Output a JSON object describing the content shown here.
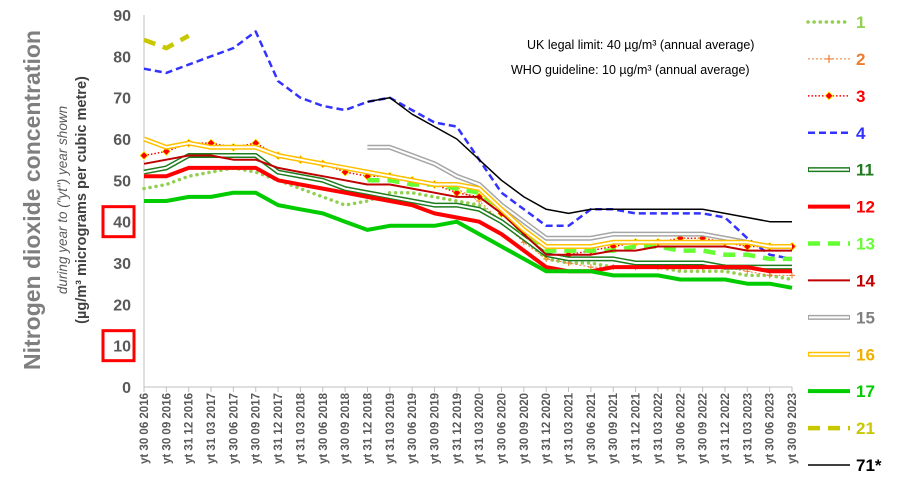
{
  "chart_data": {
    "type": "line",
    "title": "",
    "ylabel_main": "Nitrogen dioxide concentration",
    "ylabel_sub": "during year to (\"yt\") year shown",
    "ylabel_units": "(µg/m³ micrograms per cubic metre)",
    "ylim": [
      0,
      90
    ],
    "yticks": [
      "0",
      "10",
      "20",
      "30",
      "40",
      "50",
      "60",
      "70",
      "80",
      "90"
    ],
    "highlighted_ticks": [
      "10",
      "40"
    ],
    "x": [
      "yt 30 06 2016",
      "yt 30 09 2016",
      "yt 31 12 2016",
      "yt 31 03 2017",
      "yt 30 06 2017",
      "yt 30 09 2017",
      "yt 31 12 2017",
      "yt 31 03 2018",
      "yt 30 06 2018",
      "yt 30 09 2018",
      "yt 31 12 2018",
      "yt 31 03 2019",
      "yt 30 06 2019",
      "yt 30 09 2019",
      "yt 31 12 2019",
      "yt 31 03 2020",
      "yt 30 06 2020",
      "yt 30 09 2020",
      "yt 31 12 2020",
      "yt 31 03 2021",
      "yt 30 06 2021",
      "yt 30 09 2021",
      "yt 31 12 2021",
      "yt 31 03 2022",
      "yt 30 06 2022",
      "yt 30 09 2022",
      "yt 31 12 2022",
      "yt 31 03 2023",
      "yt 30 06 2023",
      "yt 30 09 2023"
    ],
    "annotations": [
      "UK legal limit:  40 µg/m³ (annual average)",
      "WHO guideline:  10 µg/m³ (annual average)"
    ],
    "legend_position": "right",
    "grid": false,
    "series": [
      {
        "name": "1",
        "color": "#92d050",
        "style": "dotted",
        "values": [
          48,
          49,
          51,
          52,
          53,
          52,
          50,
          48,
          46,
          44,
          45,
          47,
          47,
          46,
          45,
          44,
          40,
          36,
          31,
          30,
          30,
          29,
          29,
          29,
          28,
          28,
          28,
          27,
          27,
          26
        ]
      },
      {
        "name": "2",
        "color": "#ed7d31",
        "style": "plus",
        "values": [
          null,
          null,
          null,
          null,
          null,
          null,
          null,
          null,
          null,
          null,
          null,
          null,
          null,
          null,
          48,
          45,
          40,
          35,
          31,
          30,
          29,
          29,
          29,
          29,
          29,
          29,
          29,
          28,
          27,
          27
        ]
      },
      {
        "name": "3",
        "color": "#ff0000",
        "style": "diamond",
        "values": [
          56,
          57,
          59,
          59,
          58,
          59,
          56,
          55,
          54,
          52,
          51,
          51,
          50,
          49,
          47,
          46,
          42,
          37,
          32,
          32,
          33,
          34,
          35,
          35,
          36,
          36,
          35,
          34,
          34,
          34
        ]
      },
      {
        "name": "4",
        "color": "#3333ff",
        "style": "dash",
        "values": [
          77,
          76,
          78,
          80,
          82,
          86,
          74,
          70,
          68,
          67,
          69,
          70,
          67,
          64,
          63,
          55,
          47,
          43,
          39,
          39,
          43,
          43,
          42,
          42,
          42,
          42,
          41,
          36,
          32,
          31
        ]
      },
      {
        "name": "11",
        "color": "#1e7b1e",
        "style": "double",
        "values": [
          52,
          53,
          56,
          56,
          56,
          56,
          52,
          51,
          50,
          48,
          47,
          46,
          45,
          44,
          44,
          43,
          40,
          36,
          32,
          31,
          31,
          31,
          30,
          30,
          30,
          30,
          29,
          29,
          29,
          29
        ]
      },
      {
        "name": "12",
        "color": "#ff0000",
        "style": "thick",
        "values": [
          51,
          51,
          53,
          53,
          53,
          53,
          50,
          49,
          48,
          47,
          46,
          45,
          44,
          42,
          41,
          40,
          37,
          33,
          29,
          28,
          28,
          29,
          29,
          29,
          29,
          29,
          29,
          29,
          28,
          28
        ]
      },
      {
        "name": "13",
        "color": "#66ff33",
        "style": "dashthick",
        "values": [
          null,
          null,
          null,
          null,
          null,
          null,
          null,
          null,
          null,
          null,
          50,
          50,
          49,
          49,
          48,
          47,
          43,
          37,
          33,
          33,
          33,
          33,
          34,
          34,
          33,
          33,
          32,
          32,
          31,
          31
        ]
      },
      {
        "name": "14",
        "color": "#c00000",
        "style": "solid",
        "values": [
          54,
          55,
          56,
          56,
          55,
          55,
          53,
          52,
          51,
          50,
          49,
          49,
          48,
          47,
          46,
          46,
          42,
          37,
          32,
          32,
          32,
          33,
          33,
          34,
          34,
          34,
          34,
          33,
          33,
          33
        ]
      },
      {
        "name": "15",
        "color": "#a6a6a6",
        "style": "double",
        "values": [
          null,
          null,
          null,
          null,
          null,
          null,
          null,
          null,
          null,
          null,
          58,
          58,
          56,
          54,
          51,
          49,
          44,
          40,
          36,
          36,
          36,
          37,
          37,
          37,
          37,
          37,
          36,
          35,
          34,
          34
        ]
      },
      {
        "name": "16",
        "color": "#ffc000",
        "style": "double",
        "values": [
          60,
          58,
          59,
          58,
          58,
          58,
          56,
          55,
          54,
          53,
          52,
          51,
          50,
          49,
          49,
          48,
          43,
          38,
          34,
          34,
          34,
          35,
          35,
          35,
          35,
          35,
          35,
          35,
          34,
          34
        ]
      },
      {
        "name": "17",
        "color": "#00cc00",
        "style": "thick",
        "values": [
          45,
          45,
          46,
          46,
          47,
          47,
          44,
          43,
          42,
          40,
          38,
          39,
          39,
          39,
          40,
          37,
          34,
          31,
          28,
          28,
          28,
          27,
          27,
          27,
          26,
          26,
          26,
          25,
          25,
          24
        ]
      },
      {
        "name": "21",
        "color": "#c8c800",
        "style": "dashthick",
        "values": [
          84,
          82,
          85,
          null,
          null,
          null,
          null,
          null,
          null,
          null,
          null,
          null,
          null,
          null,
          null,
          null,
          null,
          null,
          null,
          null,
          null,
          null,
          null,
          null,
          null,
          null,
          null,
          null,
          null,
          null
        ]
      },
      {
        "name": "71*",
        "color": "#000000",
        "style": "thin",
        "values": [
          null,
          null,
          null,
          null,
          null,
          null,
          null,
          null,
          null,
          null,
          69,
          70,
          66,
          63,
          60,
          55,
          50,
          46,
          43,
          42,
          43,
          43,
          43,
          43,
          43,
          43,
          42,
          41,
          40,
          40
        ]
      }
    ]
  }
}
